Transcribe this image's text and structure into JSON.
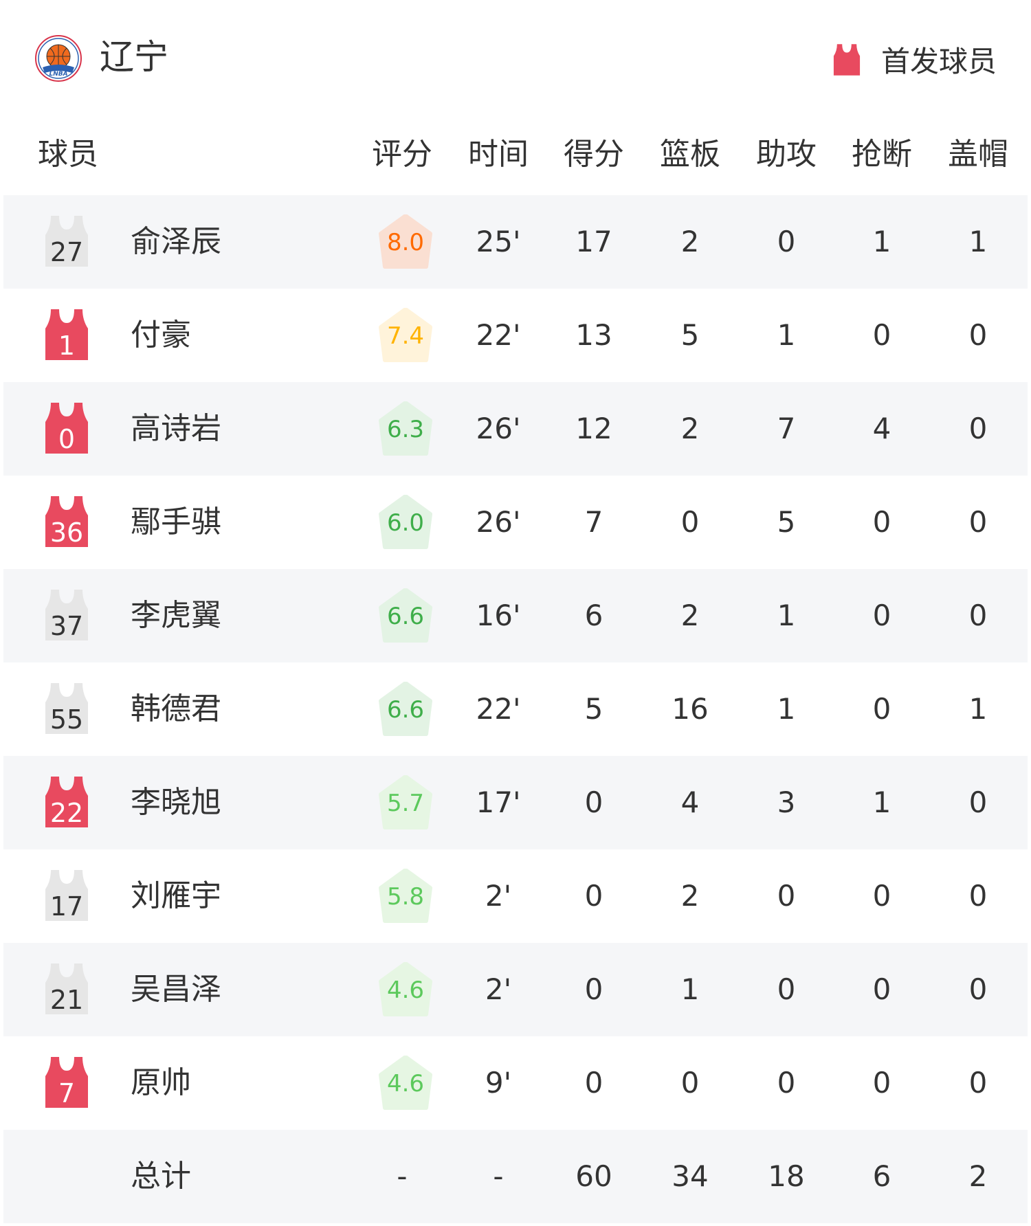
{
  "header": {
    "team": "辽宁",
    "logo_text": "LNBA",
    "legend_label": "首发球员",
    "starter_color": "#e84a5f",
    "bench_color": "#e6e6e6"
  },
  "columns": [
    "球员",
    "评分",
    "时间",
    "得分",
    "篮板",
    "助攻",
    "抢断",
    "盖帽"
  ],
  "players": [
    {
      "number": "27",
      "name": "俞泽辰",
      "starter": false,
      "rating": "8.0",
      "rating_color": "#ff6a00",
      "rating_bg": "#fadfd2",
      "time": "25'",
      "pts": "17",
      "reb": "2",
      "ast": "0",
      "stl": "1",
      "blk": "1"
    },
    {
      "number": "1",
      "name": "付豪",
      "starter": true,
      "rating": "7.4",
      "rating_color": "#ffb300",
      "rating_bg": "#fff3da",
      "time": "22'",
      "pts": "13",
      "reb": "5",
      "ast": "1",
      "stl": "0",
      "blk": "0"
    },
    {
      "number": "0",
      "name": "高诗岩",
      "starter": true,
      "rating": "6.3",
      "rating_color": "#3fae4a",
      "rating_bg": "#e3f3e4",
      "time": "26'",
      "pts": "12",
      "reb": "2",
      "ast": "7",
      "stl": "4",
      "blk": "0"
    },
    {
      "number": "36",
      "name": "鄢手骐",
      "starter": true,
      "rating": "6.0",
      "rating_color": "#3fae4a",
      "rating_bg": "#e3f3e4",
      "time": "26'",
      "pts": "7",
      "reb": "0",
      "ast": "5",
      "stl": "0",
      "blk": "0"
    },
    {
      "number": "37",
      "name": "李虎翼",
      "starter": false,
      "rating": "6.6",
      "rating_color": "#3fae4a",
      "rating_bg": "#e3f3e4",
      "time": "16'",
      "pts": "6",
      "reb": "2",
      "ast": "1",
      "stl": "0",
      "blk": "0"
    },
    {
      "number": "55",
      "name": "韩德君",
      "starter": false,
      "rating": "6.6",
      "rating_color": "#3fae4a",
      "rating_bg": "#e3f3e4",
      "time": "22'",
      "pts": "5",
      "reb": "16",
      "ast": "1",
      "stl": "0",
      "blk": "1"
    },
    {
      "number": "22",
      "name": "李晓旭",
      "starter": true,
      "rating": "5.7",
      "rating_color": "#5cc95c",
      "rating_bg": "#e6f6e3",
      "time": "17'",
      "pts": "0",
      "reb": "4",
      "ast": "3",
      "stl": "1",
      "blk": "0"
    },
    {
      "number": "17",
      "name": "刘雁宇",
      "starter": false,
      "rating": "5.8",
      "rating_color": "#5cc95c",
      "rating_bg": "#e6f6e3",
      "time": "2'",
      "pts": "0",
      "reb": "2",
      "ast": "0",
      "stl": "0",
      "blk": "0"
    },
    {
      "number": "21",
      "name": "吴昌泽",
      "starter": false,
      "rating": "4.6",
      "rating_color": "#5cc95c",
      "rating_bg": "#e6f6e3",
      "time": "2'",
      "pts": "0",
      "reb": "1",
      "ast": "0",
      "stl": "0",
      "blk": "0"
    },
    {
      "number": "7",
      "name": "原帅",
      "starter": true,
      "rating": "4.6",
      "rating_color": "#5cc95c",
      "rating_bg": "#e6f6e3",
      "time": "9'",
      "pts": "0",
      "reb": "0",
      "ast": "0",
      "stl": "0",
      "blk": "0"
    }
  ],
  "total": {
    "label": "总计",
    "rating": "-",
    "time": "-",
    "pts": "60",
    "reb": "34",
    "ast": "18",
    "stl": "6",
    "blk": "2"
  }
}
